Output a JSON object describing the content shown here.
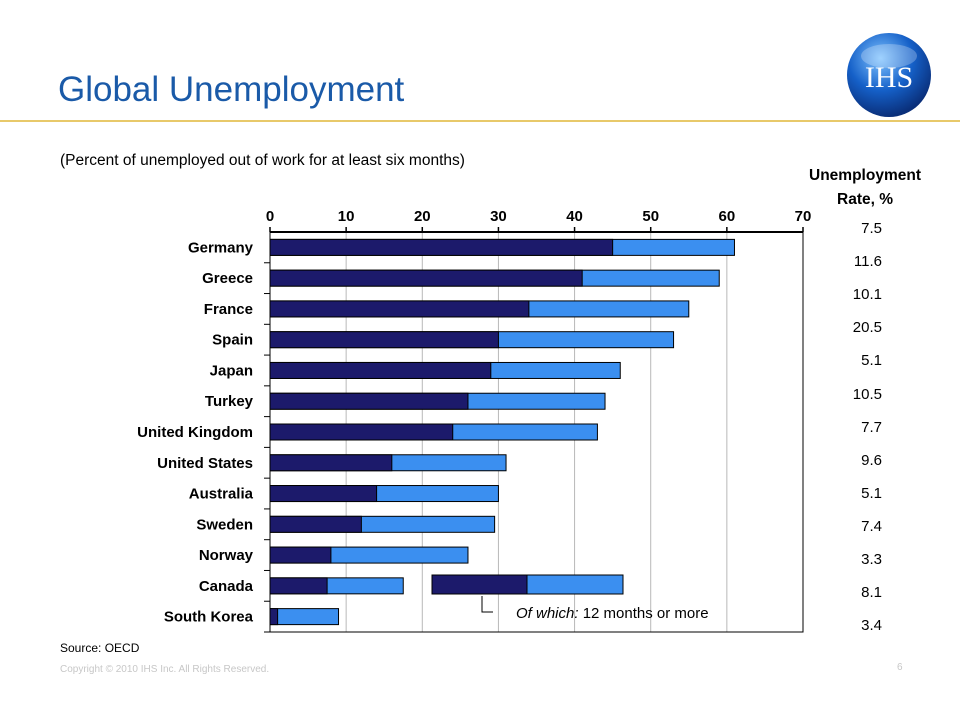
{
  "header": {
    "title": "Global Unemployment",
    "subtitle": "(Percent of unemployed out of work for at least six months)"
  },
  "logo": {
    "text": "IHS",
    "icon": "ihs-globe-logo"
  },
  "rate_header": {
    "line1": "Unemployment",
    "line2": "Rate, %"
  },
  "footer": {
    "source": "Source: OECD",
    "copyright": "Copyright © 2010 IHS Inc. All Rights Reserved.",
    "page": "6"
  },
  "colors": {
    "title": "#1a5aa8",
    "dark_bar": "#1c1a6b",
    "light_bar": "#3b8ff0",
    "rule": "#e8c96a"
  },
  "chart_data": {
    "type": "bar",
    "orientation": "horizontal",
    "stacking": "overlay",
    "categories": [
      "Germany",
      "Greece",
      "France",
      "Spain",
      "Japan",
      "Turkey",
      "United Kingdom",
      "United States",
      "Australia",
      "Sweden",
      "Norway",
      "Canada",
      "South Korea"
    ],
    "series": [
      {
        "key": "six_months",
        "values": [
          61,
          59,
          55,
          53,
          46,
          44,
          43,
          31,
          30,
          29.5,
          26,
          17.5,
          9
        ]
      },
      {
        "key": "twelve_months",
        "values": [
          45,
          41,
          34,
          30,
          29,
          26,
          24,
          16,
          14,
          12,
          8,
          7.5,
          1
        ]
      }
    ],
    "legend": {
      "italic_prefix": "Of which:",
      "text": " 12 months or more",
      "placement": "bottom-right"
    },
    "xlim": [
      0,
      70
    ],
    "xticks": [
      0,
      10,
      20,
      30,
      40,
      50,
      60,
      70
    ],
    "x_axis_position": "top",
    "grid": true,
    "unemployment_rates": [
      "7.5",
      "11.6",
      "10.1",
      "20.5",
      "5.1",
      "10.5",
      "7.7",
      "9.6",
      "5.1",
      "7.4",
      "3.3",
      "8.1",
      "3.4"
    ]
  }
}
